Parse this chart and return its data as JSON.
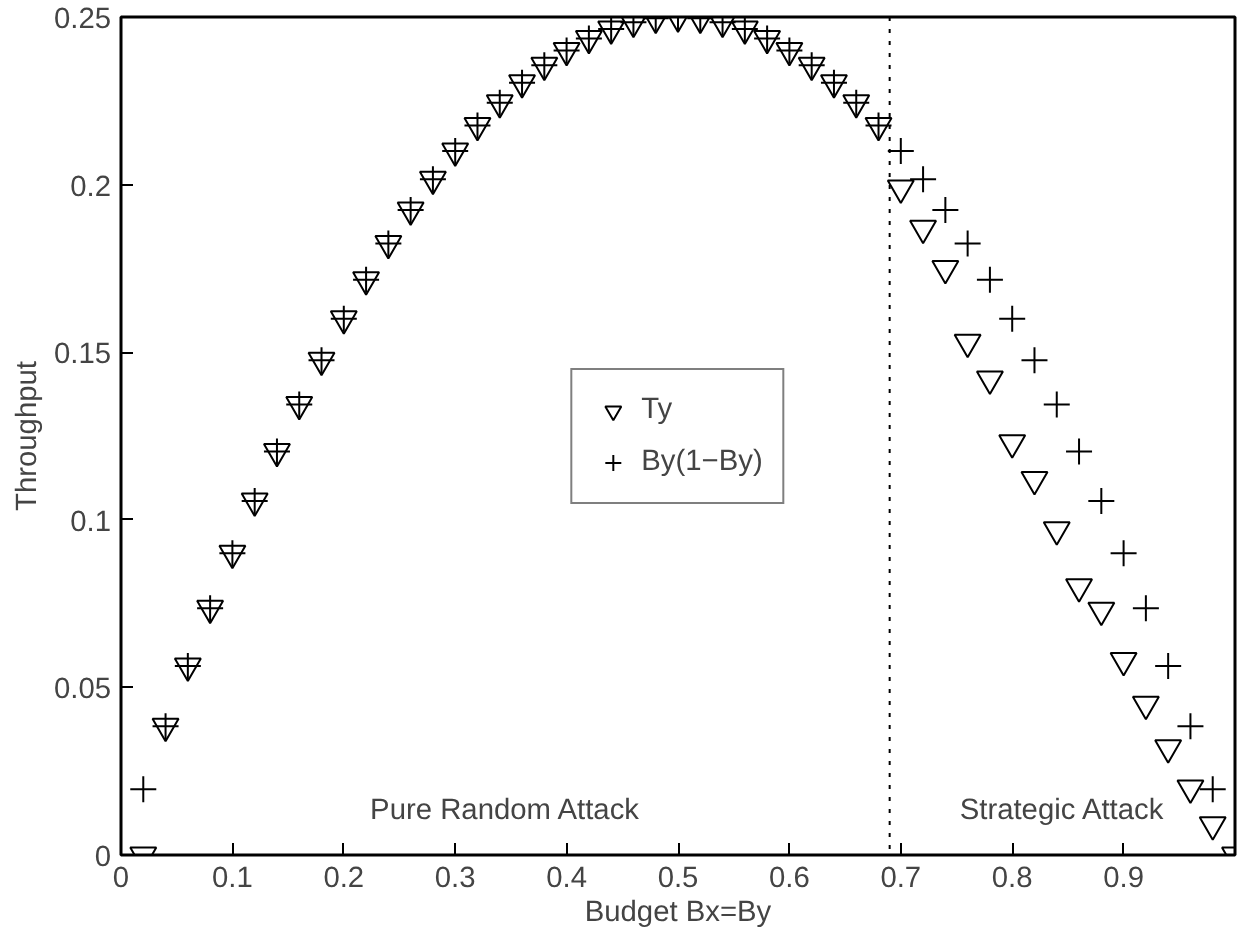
{
  "chart_data": {
    "type": "scatter",
    "xlabel": "Budget Bx=By",
    "ylabel": "Throughput",
    "xlim": [
      0,
      1
    ],
    "ylim": [
      0,
      0.25
    ],
    "xticks": [
      0,
      0.1,
      0.2,
      0.3,
      0.4,
      0.5,
      0.6,
      0.7,
      0.8,
      0.9
    ],
    "yticks": [
      0,
      0.05,
      0.1,
      0.15,
      0.2,
      0.25
    ],
    "grid": false,
    "legend": "center",
    "series": [
      {
        "name": "Ty",
        "color": "#000000",
        "marker": "triangle",
        "x": [
          0.02,
          0.04,
          0.06,
          0.08,
          0.1,
          0.12,
          0.14,
          0.16,
          0.18,
          0.2,
          0.22,
          0.24,
          0.26,
          0.28,
          0.3,
          0.32,
          0.34,
          0.36,
          0.38,
          0.4,
          0.42,
          0.44,
          0.46,
          0.48,
          0.5,
          0.52,
          0.54,
          0.56,
          0.58,
          0.6,
          0.62,
          0.64,
          0.66,
          0.68,
          0.7,
          0.72,
          0.74,
          0.76,
          0.78,
          0.8,
          0.82,
          0.84,
          0.86,
          0.88,
          0.9,
          0.92,
          0.94,
          0.96,
          0.98,
          1.0
        ],
        "values": [
          0,
          0.0384,
          0.0564,
          0.0736,
          0.09,
          0.1056,
          0.1204,
          0.1344,
          0.1476,
          0.16,
          0.1716,
          0.1824,
          0.1924,
          0.2016,
          0.21,
          0.2176,
          0.2244,
          0.2304,
          0.2356,
          0.24,
          0.2436,
          0.2464,
          0.2484,
          0.2496,
          0.25,
          0.2496,
          0.2484,
          0.2464,
          0.2436,
          0.24,
          0.2356,
          0.2304,
          0.2244,
          0.2176,
          0.199,
          0.187,
          0.175,
          0.153,
          0.142,
          0.123,
          0.112,
          0.097,
          0.08,
          0.073,
          0.058,
          0.045,
          0.032,
          0.02,
          0.009,
          0
        ]
      },
      {
        "name": "By(1−By)",
        "color": "#000000",
        "marker": "cross",
        "x": [
          0.02,
          0.04,
          0.06,
          0.08,
          0.1,
          0.12,
          0.14,
          0.16,
          0.18,
          0.2,
          0.22,
          0.24,
          0.26,
          0.28,
          0.3,
          0.32,
          0.34,
          0.36,
          0.38,
          0.4,
          0.42,
          0.44,
          0.46,
          0.48,
          0.5,
          0.52,
          0.54,
          0.56,
          0.58,
          0.6,
          0.62,
          0.64,
          0.66,
          0.68,
          0.7,
          0.72,
          0.74,
          0.76,
          0.78,
          0.8,
          0.82,
          0.84,
          0.86,
          0.88,
          0.9,
          0.92,
          0.94,
          0.96,
          0.98
        ],
        "values": [
          0.0196,
          0.0384,
          0.0564,
          0.0736,
          0.09,
          0.1056,
          0.1204,
          0.1344,
          0.1476,
          0.16,
          0.1716,
          0.1824,
          0.1924,
          0.2016,
          0.21,
          0.2176,
          0.2244,
          0.2304,
          0.2356,
          0.24,
          0.2436,
          0.2464,
          0.2484,
          0.2496,
          0.25,
          0.2496,
          0.2484,
          0.2464,
          0.2436,
          0.24,
          0.2356,
          0.2304,
          0.2244,
          0.2176,
          0.21,
          0.2016,
          0.1924,
          0.1824,
          0.1716,
          0.16,
          0.1476,
          0.1344,
          0.1204,
          0.1056,
          0.09,
          0.0736,
          0.0564,
          0.0384,
          0.0196
        ]
      }
    ],
    "ref_lines": [
      {
        "axis": "x",
        "value": 0.69,
        "label": null,
        "color": "#000000",
        "line_style": "dotted"
      }
    ],
    "annotations": [
      "Pure Random Attack",
      "Strategic Attack"
    ]
  }
}
